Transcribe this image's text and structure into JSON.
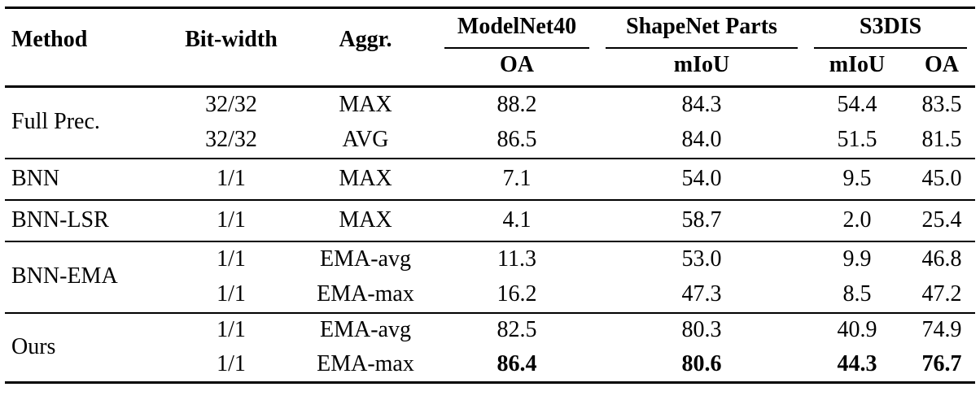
{
  "table": {
    "header": {
      "method": "Method",
      "bitwidth": "Bit-width",
      "aggr": "Aggr.",
      "groups": [
        {
          "label": "ModelNet40",
          "subs": [
            "OA"
          ]
        },
        {
          "label": "ShapeNet Parts",
          "subs": [
            "mIoU"
          ]
        },
        {
          "label": "S3DIS",
          "subs": [
            "mIoU",
            "OA"
          ]
        }
      ]
    },
    "body": {
      "groups": [
        {
          "method": "Full Prec.",
          "rows": [
            {
              "bitwidth": "32/32",
              "aggr": "MAX",
              "mn40_oa": "88.2",
              "snp_miou": "84.3",
              "s3dis_miou": "54.4",
              "s3dis_oa": "83.5"
            },
            {
              "bitwidth": "32/32",
              "aggr": "AVG",
              "mn40_oa": "86.5",
              "snp_miou": "84.0",
              "s3dis_miou": "51.5",
              "s3dis_oa": "81.5"
            }
          ]
        },
        {
          "method": "BNN",
          "rows": [
            {
              "bitwidth": "1/1",
              "aggr": "MAX",
              "mn40_oa": "7.1",
              "snp_miou": "54.0",
              "s3dis_miou": "9.5",
              "s3dis_oa": "45.0"
            }
          ]
        },
        {
          "method": "BNN-LSR",
          "rows": [
            {
              "bitwidth": "1/1",
              "aggr": "MAX",
              "mn40_oa": "4.1",
              "snp_miou": "58.7",
              "s3dis_miou": "2.0",
              "s3dis_oa": "25.4"
            }
          ]
        },
        {
          "method": "BNN-EMA",
          "rows": [
            {
              "bitwidth": "1/1",
              "aggr": "EMA-avg",
              "mn40_oa": "11.3",
              "snp_miou": "53.0",
              "s3dis_miou": "9.9",
              "s3dis_oa": "46.8"
            },
            {
              "bitwidth": "1/1",
              "aggr": "EMA-max",
              "mn40_oa": "16.2",
              "snp_miou": "47.3",
              "s3dis_miou": "8.5",
              "s3dis_oa": "47.2"
            }
          ]
        },
        {
          "method": "Ours",
          "rows": [
            {
              "bitwidth": "1/1",
              "aggr": "EMA-avg",
              "mn40_oa": "82.5",
              "snp_miou": "80.3",
              "s3dis_miou": "40.9",
              "s3dis_oa": "74.9"
            },
            {
              "bitwidth": "1/1",
              "aggr": "EMA-max",
              "mn40_oa": "86.4",
              "snp_miou": "80.6",
              "s3dis_miou": "44.3",
              "s3dis_oa": "76.7"
            }
          ]
        }
      ]
    },
    "colors": {
      "rule": "#000000",
      "text": "#000000",
      "background": "#ffffff"
    }
  }
}
